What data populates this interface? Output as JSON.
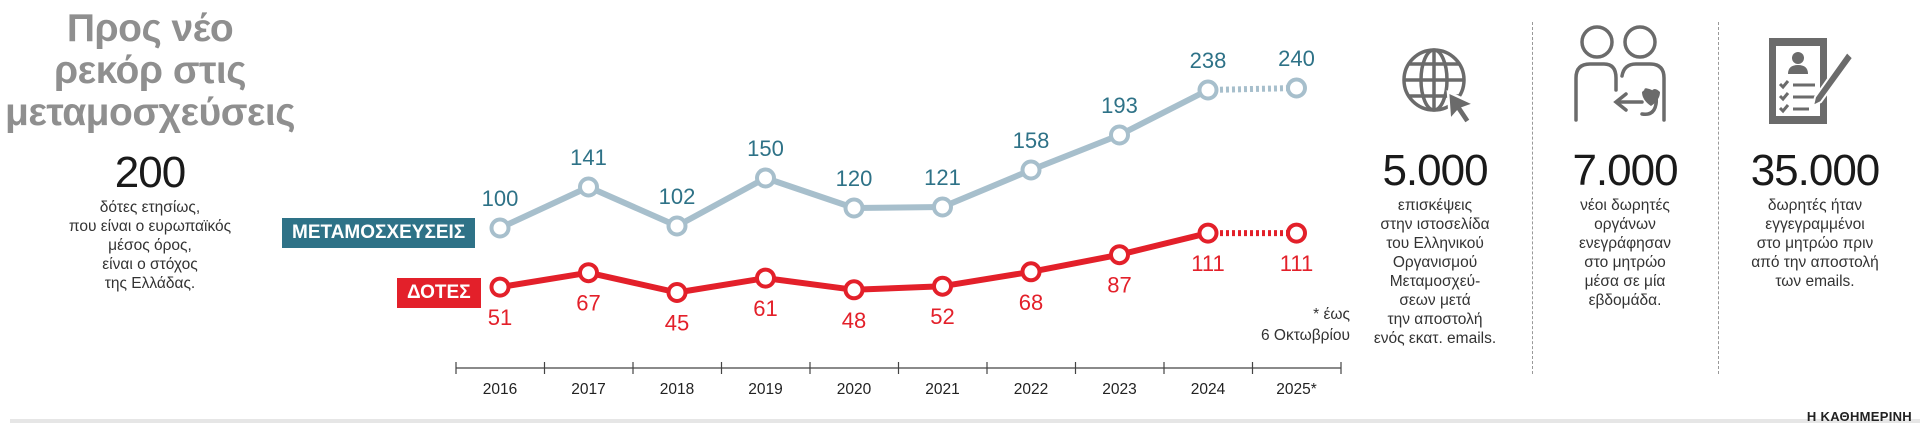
{
  "title_lines": [
    "Προς νέο",
    "ρεκόρ στις",
    "μεταμοσχεύσεις"
  ],
  "left_stat": {
    "value": "200",
    "lines": [
      "δότες ετησίως,",
      "που είναι ο ευρωπαϊκός",
      "μέσος όρος,",
      "είναι ο στόχος",
      "της Ελλάδας."
    ]
  },
  "labels": {
    "transplants": "ΜΕΤΑΜΟΣΧΕΥΣΕΙΣ",
    "donors": "ΔΟΤΕΣ"
  },
  "note_lines": [
    "* έως",
    "6 Οκτωβρίου"
  ],
  "colors": {
    "transplants_line": "#a7bfcc",
    "transplants_text": "#2e7287",
    "donors": "#e3202a",
    "axis": "#444444"
  },
  "chart_data": {
    "type": "line",
    "categories": [
      "2016",
      "2017",
      "2018",
      "2019",
      "2020",
      "2021",
      "2022",
      "2023",
      "2024",
      "2025*"
    ],
    "series": [
      {
        "name": "ΜΕΤΑΜΟΣΧΕΥΣΕΙΣ",
        "values": [
          100,
          141,
          102,
          150,
          120,
          121,
          158,
          193,
          238,
          240
        ],
        "projected_from_index": 8
      },
      {
        "name": "ΔΟΤΕΣ",
        "values": [
          51,
          67,
          45,
          61,
          48,
          52,
          68,
          87,
          111,
          111
        ],
        "projected_from_index": 8
      }
    ],
    "title": "Προς νέο ρεκόρ στις μεταμοσχεύσεις",
    "xlabel": "",
    "ylabel": "",
    "note": "* έως 6 Οκτωβρίου"
  },
  "stats": [
    {
      "icon": "globe-cursor-icon",
      "value": "5.000",
      "lines": [
        "επισκέψεις",
        "στην ιστοσελίδα",
        "του Ελληνικού",
        "Οργανισμού",
        "Μεταμοσχεύ-",
        "σεων μετά",
        "την αποστολή",
        "ενός εκατ. emails."
      ]
    },
    {
      "icon": "donor-people-icon",
      "value": "7.000",
      "lines": [
        "νέοι δωρητές",
        "οργάνων",
        "ενεγράφησαν",
        "στο μητρώο",
        "μέσα σε μία",
        "εβδομάδα."
      ]
    },
    {
      "icon": "registry-clipboard-icon",
      "value": "35.000",
      "lines": [
        "δωρητές ήταν",
        "εγγεγραμμένοι",
        "στο μητρώο πριν",
        "από την αποστολή",
        "των emails."
      ]
    }
  ],
  "footer": "Η ΚΑΘΗΜΕΡΙΝΗ"
}
